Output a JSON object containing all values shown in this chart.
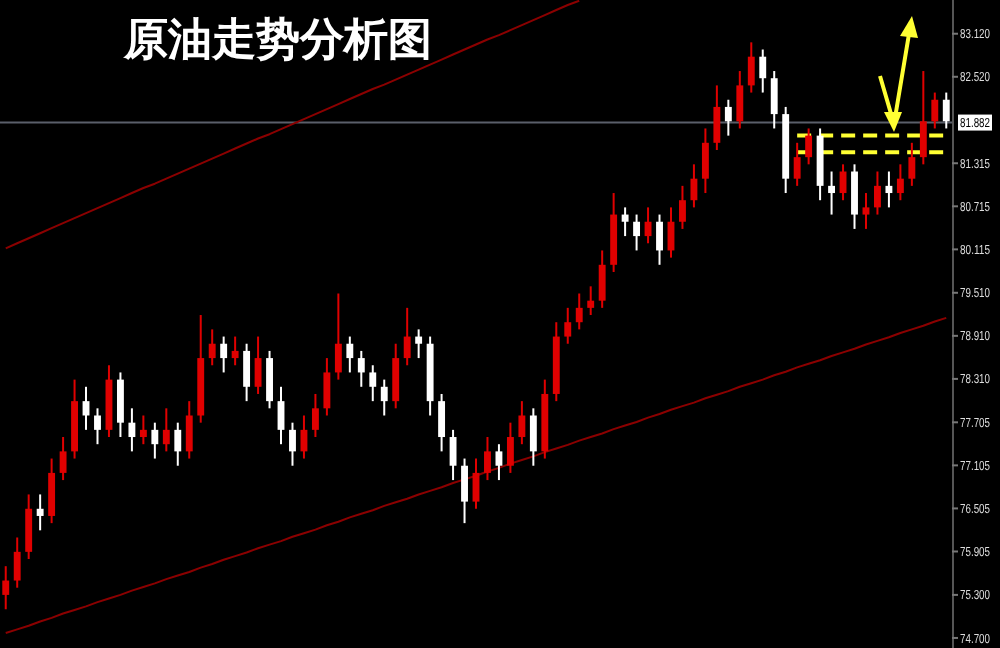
{
  "chart_data": {
    "type": "candlestick",
    "title": "原油走势分析图",
    "categories": [
      null,
      null,
      null,
      null,
      null,
      null,
      null,
      null,
      null,
      null,
      null,
      null,
      null,
      null,
      null,
      null,
      null,
      null,
      null,
      null,
      null,
      null,
      null,
      null,
      null,
      null,
      null,
      null,
      null,
      null,
      null,
      null,
      null,
      null,
      null,
      null,
      null,
      null,
      null,
      null,
      null,
      null,
      null,
      null,
      null,
      null,
      null,
      null,
      null,
      null,
      null,
      null,
      null,
      null,
      null,
      null,
      null,
      null,
      null,
      null,
      null,
      null,
      null,
      null,
      null,
      null,
      null,
      null,
      null,
      null,
      null,
      null,
      null,
      null,
      null,
      null,
      null,
      null,
      null,
      null,
      null,
      null,
      null
    ],
    "ohlc": [
      [
        75.3,
        75.7,
        75.1,
        75.5
      ],
      [
        75.5,
        76.1,
        75.4,
        75.9
      ],
      [
        75.9,
        76.7,
        75.8,
        76.5
      ],
      [
        76.5,
        76.7,
        76.2,
        76.4
      ],
      [
        76.4,
        77.2,
        76.3,
        77.0
      ],
      [
        77.0,
        77.5,
        76.9,
        77.3
      ],
      [
        77.3,
        78.3,
        77.2,
        78.0
      ],
      [
        78.0,
        78.2,
        77.6,
        77.8
      ],
      [
        77.8,
        77.9,
        77.4,
        77.6
      ],
      [
        77.6,
        78.5,
        77.5,
        78.3
      ],
      [
        78.3,
        78.4,
        77.5,
        77.7
      ],
      [
        77.7,
        77.9,
        77.3,
        77.5
      ],
      [
        77.5,
        77.8,
        77.4,
        77.6
      ],
      [
        77.6,
        77.7,
        77.2,
        77.4
      ],
      [
        77.4,
        77.9,
        77.3,
        77.6
      ],
      [
        77.6,
        77.7,
        77.1,
        77.3
      ],
      [
        77.3,
        78.0,
        77.2,
        77.8
      ],
      [
        77.8,
        79.2,
        77.7,
        78.6
      ],
      [
        78.6,
        79.0,
        78.5,
        78.8
      ],
      [
        78.8,
        78.9,
        78.4,
        78.6
      ],
      [
        78.6,
        78.9,
        78.5,
        78.7
      ],
      [
        78.7,
        78.8,
        78.0,
        78.2
      ],
      [
        78.2,
        78.9,
        78.1,
        78.6
      ],
      [
        78.6,
        78.7,
        77.9,
        78.0
      ],
      [
        78.0,
        78.2,
        77.4,
        77.6
      ],
      [
        77.6,
        77.7,
        77.1,
        77.3
      ],
      [
        77.3,
        77.8,
        77.2,
        77.6
      ],
      [
        77.6,
        78.1,
        77.5,
        77.9
      ],
      [
        77.9,
        78.6,
        77.8,
        78.4
      ],
      [
        78.4,
        79.5,
        78.3,
        78.8
      ],
      [
        78.8,
        78.9,
        78.4,
        78.6
      ],
      [
        78.6,
        78.7,
        78.2,
        78.4
      ],
      [
        78.4,
        78.5,
        78.0,
        78.2
      ],
      [
        78.2,
        78.3,
        77.8,
        78.0
      ],
      [
        78.0,
        78.8,
        77.9,
        78.6
      ],
      [
        78.6,
        79.3,
        78.5,
        78.9
      ],
      [
        78.9,
        79.0,
        78.6,
        78.8
      ],
      [
        78.8,
        78.9,
        77.8,
        78.0
      ],
      [
        78.0,
        78.1,
        77.3,
        77.5
      ],
      [
        77.5,
        77.6,
        76.9,
        77.1
      ],
      [
        77.1,
        77.2,
        76.3,
        76.6
      ],
      [
        76.6,
        77.2,
        76.5,
        77.0
      ],
      [
        77.0,
        77.5,
        76.9,
        77.3
      ],
      [
        77.3,
        77.4,
        76.9,
        77.1
      ],
      [
        77.1,
        77.7,
        77.0,
        77.5
      ],
      [
        77.5,
        78.0,
        77.4,
        77.8
      ],
      [
        77.8,
        77.9,
        77.1,
        77.3
      ],
      [
        77.3,
        78.3,
        77.2,
        78.1
      ],
      [
        78.1,
        79.1,
        78.0,
        78.9
      ],
      [
        78.9,
        79.3,
        78.8,
        79.1
      ],
      [
        79.1,
        79.5,
        79.0,
        79.3
      ],
      [
        79.3,
        79.6,
        79.2,
        79.4
      ],
      [
        79.4,
        80.1,
        79.3,
        79.9
      ],
      [
        79.9,
        80.9,
        79.8,
        80.6
      ],
      [
        80.6,
        80.7,
        80.3,
        80.5
      ],
      [
        80.5,
        80.6,
        80.1,
        80.3
      ],
      [
        80.3,
        80.7,
        80.2,
        80.5
      ],
      [
        80.5,
        80.6,
        79.9,
        80.1
      ],
      [
        80.1,
        80.7,
        80.0,
        80.5
      ],
      [
        80.5,
        81.0,
        80.4,
        80.8
      ],
      [
        80.8,
        81.3,
        80.7,
        81.1
      ],
      [
        81.1,
        81.8,
        80.9,
        81.6
      ],
      [
        81.6,
        82.4,
        81.5,
        82.1
      ],
      [
        82.1,
        82.2,
        81.7,
        81.9
      ],
      [
        81.9,
        82.6,
        81.8,
        82.4
      ],
      [
        82.4,
        83.0,
        82.3,
        82.8
      ],
      [
        82.8,
        82.9,
        82.3,
        82.5
      ],
      [
        82.5,
        82.6,
        81.8,
        82.0
      ],
      [
        82.0,
        82.1,
        80.9,
        81.1
      ],
      [
        81.1,
        81.6,
        81.0,
        81.4
      ],
      [
        81.4,
        81.8,
        81.3,
        81.7
      ],
      [
        81.7,
        81.8,
        80.8,
        81.0
      ],
      [
        81.0,
        81.2,
        80.6,
        80.9
      ],
      [
        80.9,
        81.3,
        80.8,
        81.2
      ],
      [
        81.2,
        81.3,
        80.4,
        80.6
      ],
      [
        80.6,
        80.9,
        80.4,
        80.7
      ],
      [
        80.7,
        81.2,
        80.6,
        81.0
      ],
      [
        81.0,
        81.2,
        80.7,
        80.9
      ],
      [
        80.9,
        81.3,
        80.8,
        81.1
      ],
      [
        81.1,
        81.6,
        81.0,
        81.4
      ],
      [
        81.4,
        82.6,
        81.3,
        81.9
      ],
      [
        81.9,
        82.3,
        81.8,
        82.2
      ],
      [
        82.2,
        82.3,
        81.8,
        81.9
      ]
    ],
    "colors": [
      "#e00000",
      "#e00000",
      "#e00000",
      "#ffffff",
      "#e00000",
      "#e00000",
      "#e00000",
      "#ffffff",
      "#ffffff",
      "#e00000",
      "#ffffff",
      "#ffffff",
      "#e00000",
      "#ffffff",
      "#e00000",
      "#ffffff",
      "#e00000",
      "#e00000",
      "#e00000",
      "#ffffff",
      "#e00000",
      "#ffffff",
      "#e00000",
      "#ffffff",
      "#ffffff",
      "#ffffff",
      "#e00000",
      "#e00000",
      "#e00000",
      "#e00000",
      "#ffffff",
      "#ffffff",
      "#ffffff",
      "#ffffff",
      "#e00000",
      "#e00000",
      "#ffffff",
      "#ffffff",
      "#ffffff",
      "#ffffff",
      "#ffffff",
      "#e00000",
      "#e00000",
      "#ffffff",
      "#e00000",
      "#e00000",
      "#ffffff",
      "#e00000",
      "#e00000",
      "#e00000",
      "#e00000",
      "#e00000",
      "#e00000",
      "#e00000",
      "#ffffff",
      "#ffffff",
      "#e00000",
      "#ffffff",
      "#e00000",
      "#e00000",
      "#e00000",
      "#e00000",
      "#e00000",
      "#ffffff",
      "#e00000",
      "#e00000",
      "#ffffff",
      "#ffffff",
      "#ffffff",
      "#e00000",
      "#e00000",
      "#ffffff",
      "#ffffff",
      "#e00000",
      "#ffffff",
      "#e00000",
      "#e00000",
      "#ffffff",
      "#e00000",
      "#e00000",
      "#e00000",
      "#e00000",
      "#ffffff"
    ],
    "series": [
      {
        "type": "line",
        "values": [
          80.13,
          80.2,
          80.27,
          80.34,
          80.41,
          80.48,
          80.55,
          80.62,
          80.69,
          80.76,
          80.83,
          80.9,
          80.97,
          81.03,
          81.1,
          81.17,
          81.24,
          81.31,
          81.38,
          81.45,
          81.52,
          81.59,
          81.66,
          81.72,
          81.79,
          81.86,
          81.93,
          82.0,
          82.07,
          82.14,
          82.21,
          82.28,
          82.35,
          82.41,
          82.48,
          82.55,
          82.62,
          82.69,
          82.76,
          82.83,
          82.9,
          82.97,
          83.04,
          83.1,
          83.17,
          83.24,
          83.31,
          83.38,
          83.45,
          83.52,
          83.58,
          null,
          null,
          null,
          null,
          null,
          null,
          null,
          null,
          null,
          null,
          null,
          null,
          null,
          null,
          null,
          null,
          null,
          null,
          null,
          null,
          null,
          null,
          null,
          null,
          null,
          null,
          null,
          null,
          null,
          null,
          null,
          null
        ],
        "color": "#8b0000",
        "line_style": "solid"
      },
      {
        "type": "line",
        "values": [
          74.77,
          74.82,
          74.87,
          74.93,
          74.98,
          75.04,
          75.09,
          75.14,
          75.2,
          75.25,
          75.3,
          75.36,
          75.41,
          75.46,
          75.52,
          75.57,
          75.62,
          75.68,
          75.73,
          75.79,
          75.84,
          75.89,
          75.95,
          76.0,
          76.05,
          76.11,
          76.16,
          76.21,
          76.27,
          76.32,
          76.38,
          76.43,
          76.48,
          76.54,
          76.59,
          76.64,
          76.7,
          76.75,
          76.8,
          76.86,
          76.91,
          76.96,
          77.02,
          77.07,
          77.13,
          77.18,
          77.23,
          77.29,
          77.34,
          77.39,
          77.45,
          77.5,
          77.55,
          77.61,
          77.66,
          77.71,
          77.77,
          77.82,
          77.88,
          77.93,
          77.98,
          78.04,
          78.09,
          78.14,
          78.2,
          78.25,
          78.3,
          78.36,
          78.41,
          78.47,
          78.52,
          78.57,
          78.63,
          78.68,
          78.73,
          78.79,
          78.84,
          78.89,
          78.95,
          79.0,
          79.05,
          79.11,
          79.16
        ],
        "color": "#8b0000",
        "line_style": "solid"
      },
      {
        "type": "line",
        "values": [
          null,
          null,
          null,
          null,
          null,
          null,
          null,
          null,
          null,
          null,
          null,
          null,
          null,
          null,
          null,
          null,
          null,
          null,
          null,
          null,
          null,
          null,
          null,
          null,
          null,
          null,
          null,
          null,
          null,
          null,
          null,
          null,
          null,
          null,
          null,
          null,
          null,
          null,
          null,
          null,
          null,
          null,
          null,
          null,
          null,
          null,
          null,
          null,
          null,
          null,
          null,
          null,
          null,
          null,
          null,
          null,
          null,
          null,
          null,
          null,
          null,
          null,
          null,
          null,
          null,
          null,
          null,
          null,
          null,
          81.7,
          81.7,
          81.7,
          81.7,
          81.7,
          81.7,
          81.7,
          81.7,
          81.7,
          81.7,
          81.7,
          81.7,
          81.7,
          81.7
        ],
        "color": "#ffff33",
        "line_style": "dashed"
      },
      {
        "type": "line",
        "values": [
          null,
          null,
          null,
          null,
          null,
          null,
          null,
          null,
          null,
          null,
          null,
          null,
          null,
          null,
          null,
          null,
          null,
          null,
          null,
          null,
          null,
          null,
          null,
          null,
          null,
          null,
          null,
          null,
          null,
          null,
          null,
          null,
          null,
          null,
          null,
          null,
          null,
          null,
          null,
          null,
          null,
          null,
          null,
          null,
          null,
          null,
          null,
          null,
          null,
          null,
          null,
          null,
          null,
          null,
          null,
          null,
          null,
          null,
          null,
          null,
          null,
          null,
          null,
          null,
          null,
          null,
          null,
          null,
          null,
          81.47,
          81.47,
          81.47,
          81.47,
          81.47,
          81.47,
          81.47,
          81.47,
          81.47,
          81.47,
          81.47,
          81.47,
          81.47,
          81.47
        ],
        "color": "#ffff33",
        "line_style": "dashed"
      }
    ],
    "ref_lines": [
      {
        "axis": "y",
        "value": 81.882,
        "label": "81.882",
        "color": "#5a5f6a"
      }
    ],
    "ylim": [
      74.56,
      83.59
    ],
    "yticks": [
      {
        "value": 83.12,
        "label": "83.120"
      },
      {
        "value": 82.52,
        "label": "82.520"
      },
      81.315,
      80.715,
      80.115,
      {
        "value": 79.51,
        "label": "79.510"
      },
      {
        "value": 78.91,
        "label": "78.910"
      },
      {
        "value": 78.31,
        "label": "78.310"
      },
      77.705,
      77.105,
      76.505,
      75.905,
      {
        "value": 75.3,
        "label": "75.300"
      },
      {
        "value": 74.7,
        "label": "74.700"
      }
    ],
    "tick_labels": "y"
  }
}
